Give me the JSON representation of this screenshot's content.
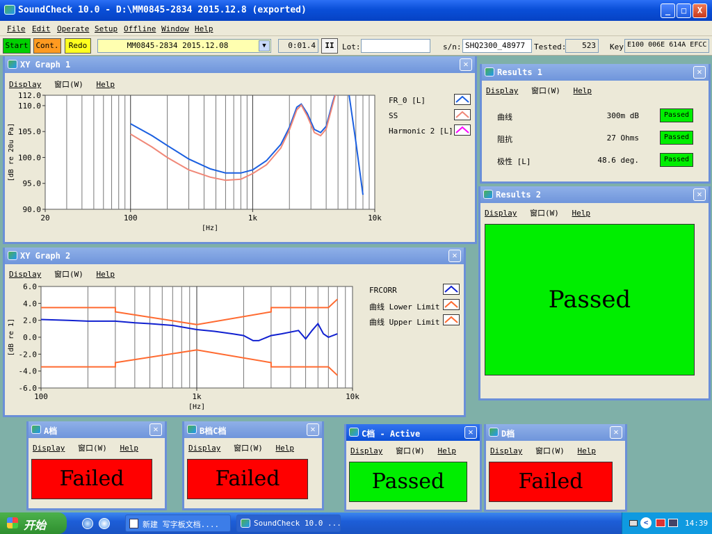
{
  "app": {
    "title": "SoundCheck 10.0 - D:\\MM0845-2834 2015.12.8 (exported)",
    "window_buttons": {
      "minimize": "_",
      "maximize": "□",
      "close": "X"
    }
  },
  "menu": [
    "File",
    "Edit",
    "Operate",
    "Setup",
    "Offline",
    "Window",
    "Help"
  ],
  "toolbar": {
    "start": "Start",
    "cont": "Cont.",
    "redo": "Redo",
    "sequence": "MM0845-2834 2015.12.08",
    "time": "0:01.4",
    "pause": "II",
    "lot_label": "Lot:",
    "lot_value": "",
    "sn_label": "s/n:",
    "sn_value": "SHQ2300_48977",
    "tested_label": "Tested:",
    "tested_value": "523",
    "key_label": "Key",
    "key_value": "E100 006E 614A EFCC"
  },
  "subwindow_menu": {
    "display": "Display",
    "window": "窗口(W)",
    "help": "Help"
  },
  "xy1": {
    "title": "XY Graph 1",
    "legend": [
      "FR_0 [L]",
      "SS",
      "Harmonic 2 [L]"
    ]
  },
  "xy2": {
    "title": "XY Graph 2",
    "legend": [
      "FRCORR",
      "曲线 Lower Limit",
      "曲线 Upper Limit"
    ]
  },
  "results1": {
    "title": "Results 1",
    "rows": [
      {
        "name": "曲线",
        "value": "300m dB",
        "status": "Passed"
      },
      {
        "name": "阻抗",
        "value": "27 Ohms",
        "status": "Passed"
      },
      {
        "name": "极性 [L]",
        "value": "48.6 deg.",
        "status": "Passed"
      }
    ]
  },
  "results2": {
    "title": "Results 2",
    "verdict": "Passed"
  },
  "grades": [
    {
      "title": "A档",
      "result": "Failed"
    },
    {
      "title": "B档C档",
      "result": "Failed"
    },
    {
      "title": "C档 - Active",
      "result": "Passed"
    },
    {
      "title": "D档",
      "result": "Failed"
    }
  ],
  "colors": {
    "pass": "#00ee00",
    "fail": "#ff0000",
    "fr0": "#1a5fe0",
    "ss": "#f08878",
    "harm": "#ff00ff",
    "frcorr": "#1020d0",
    "limit": "#ff6a30"
  },
  "taskbar": {
    "start": "开始",
    "tasks": [
      "新建 写字板文档....",
      "SoundCheck 10.0 ..."
    ],
    "clock": "14:39"
  },
  "chart_data": [
    {
      "type": "line",
      "title": "XY Graph 1",
      "xlabel": "[Hz]",
      "ylabel": "[dB re 20u Pa]",
      "xscale": "log",
      "xlim": [
        20,
        10000
      ],
      "ylim": [
        90,
        112
      ],
      "xticks": [
        20,
        100,
        1000,
        10000
      ],
      "xtick_labels": [
        "20",
        "100",
        "1k",
        "10k"
      ],
      "yticks": [
        90,
        95,
        100,
        105,
        110,
        112
      ],
      "ytick_labels": [
        "90.0",
        "95.0",
        "100.0",
        "105.0",
        "110.0",
        "112.0"
      ],
      "grid": true,
      "legend": "right",
      "series": [
        {
          "name": "FR_0 [L]",
          "color": "#1a5fe0",
          "x": [
            100,
            150,
            200,
            300,
            450,
            600,
            800,
            1000,
            1300,
            1700,
            2000,
            2300,
            2500,
            2800,
            3200,
            3600,
            4000,
            4500,
            5000,
            6000,
            7000,
            8000
          ],
          "y": [
            106.5,
            104.2,
            102.3,
            99.7,
            97.8,
            97.0,
            97.0,
            97.6,
            99.4,
            102.5,
            105.8,
            109.7,
            110.3,
            108.5,
            105.4,
            104.8,
            106.0,
            110.5,
            114,
            114,
            103,
            92.8
          ]
        },
        {
          "name": "SS",
          "color": "#f08878",
          "x": [
            100,
            150,
            200,
            300,
            450,
            600,
            800,
            1000,
            1300,
            1700,
            2000,
            2300,
            2500,
            2800,
            3200,
            3600,
            4000,
            4500,
            5000
          ],
          "y": [
            104.5,
            102.0,
            100.0,
            97.6,
            96.2,
            95.6,
            95.8,
            96.9,
            98.6,
            101.8,
            105.3,
            109.2,
            110.1,
            108.0,
            104.8,
            104.2,
            105.5,
            110.0,
            114
          ]
        }
      ]
    },
    {
      "type": "line",
      "title": "XY Graph 2",
      "xlabel": "[Hz]",
      "ylabel": "[dB re 1]",
      "xscale": "log",
      "xlim": [
        100,
        10000
      ],
      "ylim": [
        -6,
        6
      ],
      "xticks": [
        100,
        1000,
        10000
      ],
      "xtick_labels": [
        "100",
        "1k",
        "10k"
      ],
      "yticks": [
        -6,
        -4,
        -2,
        0,
        2,
        4,
        6
      ],
      "ytick_labels": [
        "-6.0",
        "-4.0",
        "-2.0",
        "0.0",
        "2.0",
        "4.0",
        "6.0"
      ],
      "grid": true,
      "legend": "right",
      "series": [
        {
          "name": "FRCORR",
          "color": "#1020d0",
          "x": [
            100,
            150,
            200,
            300,
            400,
            500,
            700,
            1000,
            1300,
            1700,
            2000,
            2300,
            2500,
            3000,
            3500,
            4500,
            5000,
            5500,
            6000,
            6500,
            7000,
            8000
          ],
          "y": [
            2.1,
            2.0,
            1.9,
            1.9,
            1.7,
            1.6,
            1.4,
            0.9,
            0.7,
            0.4,
            0.2,
            -0.4,
            -0.4,
            0.2,
            0.4,
            0.8,
            -0.2,
            0.8,
            1.6,
            0.4,
            0.0,
            0.4
          ]
        },
        {
          "name": "曲线 Lower Limit",
          "color": "#ff6a30",
          "x": [
            100,
            300,
            300,
            1000,
            3000,
            3000,
            7000,
            8000
          ],
          "y": [
            -3.5,
            -3.5,
            -3.0,
            -1.5,
            -3.0,
            -3.5,
            -3.5,
            -4.5
          ]
        },
        {
          "name": "曲线 Upper Limit",
          "color": "#ff6a30",
          "x": [
            100,
            300,
            300,
            1000,
            3000,
            3000,
            7000,
            8000
          ],
          "y": [
            3.5,
            3.5,
            3.0,
            1.5,
            3.0,
            3.5,
            3.5,
            4.5
          ]
        }
      ]
    }
  ]
}
